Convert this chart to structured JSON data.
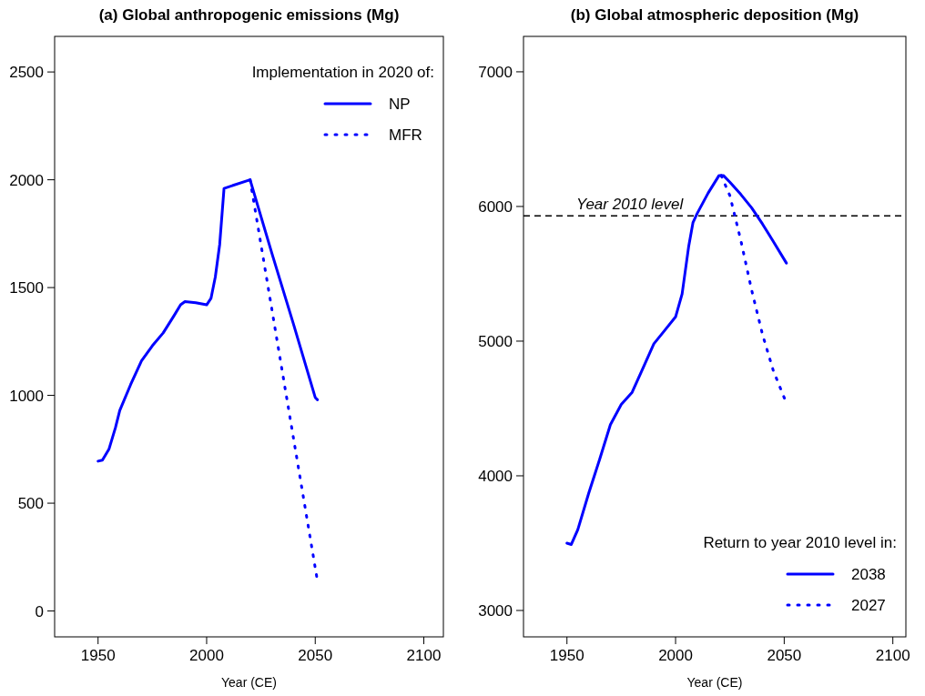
{
  "chart_data": [
    {
      "type": "line",
      "title": "(a) Global anthropogenic emissions (Mg)",
      "xlabel": "Year (CE)",
      "xlim": [
        1930,
        2109
      ],
      "xticks": [
        1950,
        2000,
        2050,
        2100
      ],
      "ylim": [
        -120,
        2665
      ],
      "yticks": [
        0,
        500,
        1000,
        1500,
        2000,
        2500
      ],
      "grid": false,
      "legend": "top right",
      "legend_title": "Implementation in 2020 of:",
      "series": [
        {
          "name": "NP",
          "color": "#0000ff",
          "line_style": "solid",
          "x": [
            1950,
            1952,
            1955,
            1958,
            1960,
            1965,
            1970,
            1975,
            1980,
            1985,
            1988,
            1990,
            1995,
            2000,
            2002,
            2004,
            2006,
            2008,
            2020,
            2030,
            2040,
            2050,
            2051
          ],
          "values": [
            695,
            700,
            750,
            850,
            930,
            1050,
            1160,
            1230,
            1290,
            1370,
            1420,
            1435,
            1430,
            1420,
            1450,
            1550,
            1700,
            1960,
            2000,
            1660,
            1330,
            990,
            980
          ]
        },
        {
          "name": "MFR",
          "color": "#0000ff",
          "line_style": "dotted",
          "x": [
            2020,
            2051
          ],
          "values": [
            2000,
            140
          ]
        }
      ]
    },
    {
      "type": "line",
      "title": "(b) Global atmospheric deposition (Mg)",
      "xlabel": "Year (CE)",
      "xlim": [
        1930,
        2106
      ],
      "xticks": [
        1950,
        2000,
        2050,
        2100
      ],
      "ylim": [
        2804,
        7263
      ],
      "yticks": [
        3000,
        4000,
        5000,
        6000,
        7000
      ],
      "grid": false,
      "legend": "bottom right",
      "legend_title": "Return to year 2010 level in:",
      "ref_lines": [
        {
          "axis": "y",
          "value": 5930,
          "label": "Year 2010 level",
          "color": "#000000",
          "line_style": "dashed"
        }
      ],
      "series": [
        {
          "name": "2038",
          "color": "#0000ff",
          "line_style": "solid",
          "x": [
            1950,
            1952,
            1955,
            1960,
            1965,
            1970,
            1975,
            1980,
            1985,
            1990,
            1995,
            2000,
            2003,
            2006,
            2008,
            2010,
            2015,
            2020,
            2022,
            2025,
            2030,
            2035,
            2040,
            2045,
            2051
          ],
          "values": [
            3500,
            3490,
            3600,
            3870,
            4120,
            4380,
            4530,
            4620,
            4800,
            4980,
            5080,
            5180,
            5350,
            5700,
            5880,
            5950,
            6100,
            6230,
            6230,
            6180,
            6090,
            5990,
            5870,
            5740,
            5580
          ]
        },
        {
          "name": "2027",
          "color": "#0000ff",
          "line_style": "dotted",
          "x": [
            2021,
            2025,
            2030,
            2035,
            2040,
            2045,
            2051
          ],
          "values": [
            6230,
            6080,
            5750,
            5380,
            5050,
            4780,
            4540
          ]
        }
      ]
    }
  ]
}
